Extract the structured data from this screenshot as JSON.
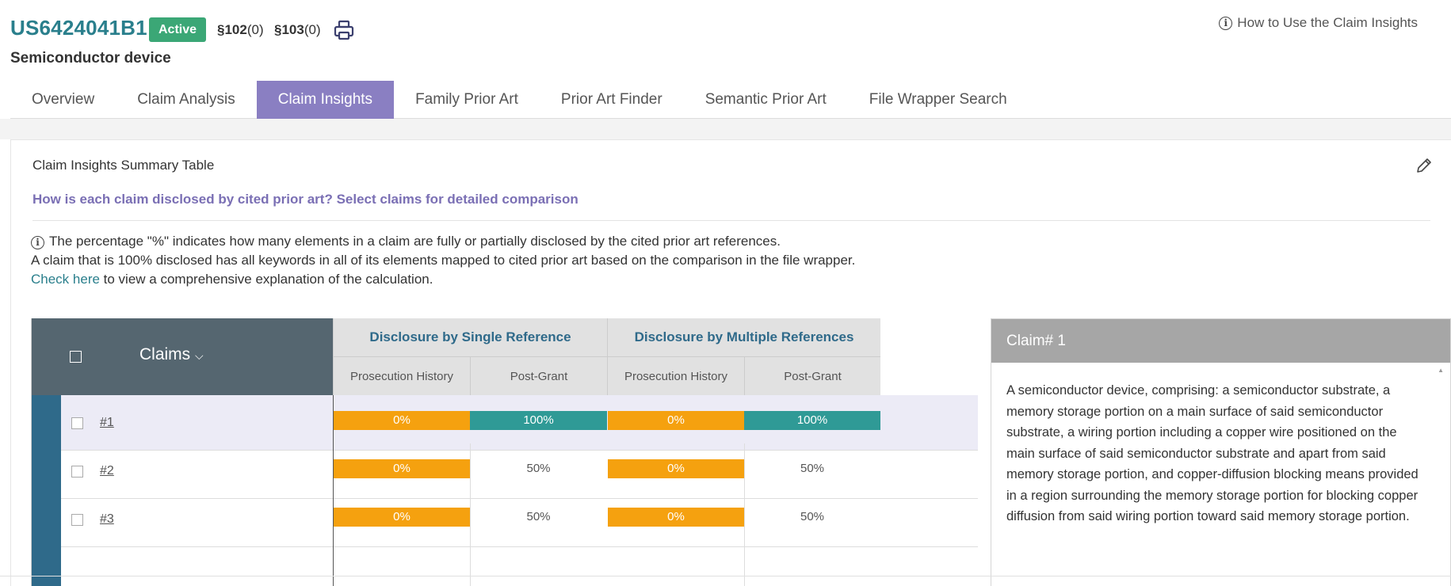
{
  "patent": {
    "number": "US6424041B1",
    "status": "Active",
    "sec102_label": "§102",
    "sec102_count": "(0)",
    "sec103_label": "§103",
    "sec103_count": "(0)",
    "title": "Semiconductor device",
    "help_link": "How to Use the Claim Insights"
  },
  "tabs": [
    {
      "label": "Overview"
    },
    {
      "label": "Claim Analysis"
    },
    {
      "label": "Claim Insights",
      "active": true
    },
    {
      "label": "Family Prior Art"
    },
    {
      "label": "Prior Art Finder"
    },
    {
      "label": "Semantic Prior Art"
    },
    {
      "label": "File Wrapper Search"
    }
  ],
  "summary": {
    "title": "Claim Insights Summary Table",
    "question": "How is each claim disclosed by cited prior art? Select claims for detailed comparison",
    "note_line1": "The percentage \"%\" indicates how many elements in a claim are fully or partially disclosed by the cited prior art references.",
    "note_line2": "A claim that is 100% disclosed has all keywords in all of its elements mapped to cited prior art based on the comparison in the file wrapper.",
    "note_link": "Check here",
    "note_line3_rest": " to view a comprehensive explanation of the calculation."
  },
  "table": {
    "claims_header": "Claims",
    "group_single": "Disclosure by Single Reference",
    "group_multiple": "Disclosure by Multiple References",
    "sub_prosecution": "Prosecution History",
    "sub_postgrant": "Post-Grant",
    "rows": [
      {
        "claim": "#1",
        "single_pros": "0%",
        "single_post": "100%",
        "multi_pros": "0%",
        "multi_post": "100%"
      },
      {
        "claim": "#2",
        "single_pros": "0%",
        "single_post": "50%",
        "multi_pros": "0%",
        "multi_post": "50%"
      },
      {
        "claim": "#3",
        "single_pros": "0%",
        "single_post": "50%",
        "multi_pros": "0%",
        "multi_post": "50%"
      }
    ]
  },
  "claim_detail": {
    "header": "Claim# 1",
    "text": "A semiconductor device, comprising: a semiconductor substrate, a memory storage portion on a main surface of said semiconductor substrate, a wiring portion including a copper wire positioned on the main surface of said semiconductor substrate and apart from said memory storage portion, and copper-diffusion blocking means provided in a region surrounding the memory storage portion for blocking copper diffusion from said wiring portion toward said memory storage portion."
  },
  "colors": {
    "accent": "#8a7fc2",
    "brand_teal": "#2a7f8c",
    "orange": "#f5a10f",
    "teal_cell": "#2f9a96",
    "active_badge": "#3ba776"
  }
}
